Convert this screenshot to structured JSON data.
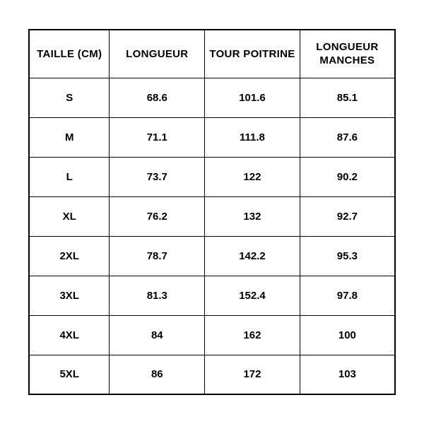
{
  "size_table": {
    "type": "table",
    "columns": [
      {
        "label": "TAILLE (CM)",
        "width_pct": 22
      },
      {
        "label": "LONGUEUR",
        "width_pct": 26
      },
      {
        "label": "TOUR POITRINE",
        "width_pct": 26
      },
      {
        "label": "LONGUEUR MANCHES",
        "width_pct": 26
      }
    ],
    "rows": [
      [
        "S",
        "68.6",
        "101.6",
        "85.1"
      ],
      [
        "M",
        "71.1",
        "111.8",
        "87.6"
      ],
      [
        "L",
        "73.7",
        "122",
        "90.2"
      ],
      [
        "XL",
        "76.2",
        "132",
        "92.7"
      ],
      [
        "2XL",
        "78.7",
        "142.2",
        "95.3"
      ],
      [
        "3XL",
        "81.3",
        "152.4",
        "97.8"
      ],
      [
        "4XL",
        "84",
        "162",
        "100"
      ],
      [
        "5XL",
        "86",
        "172",
        "103"
      ]
    ],
    "styling": {
      "background_color": "#ffffff",
      "border_color": "#000000",
      "outer_border_width": 2,
      "inner_border_width": 1,
      "header_font_size": 15,
      "header_font_weight": 900,
      "cell_font_size": 15,
      "cell_font_weight": 700,
      "text_color": "#000000",
      "text_align": "center",
      "header_row_height": 68,
      "body_row_height": 56
    }
  }
}
